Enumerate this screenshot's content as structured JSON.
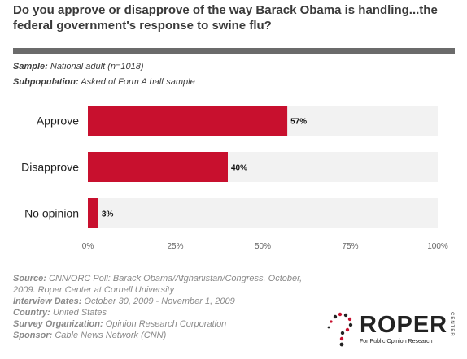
{
  "title": "Do you approve or disapprove of the way Barack Obama is handling...the federal government's response to swine flu?",
  "sample_label": "Sample",
  "sample_value": "National adult (n=1018)",
  "subpop_label": "Subpopulation",
  "subpop_value": "Asked of Form A half sample",
  "colors": {
    "bar": "#c8102e",
    "band": "#f2f2f2",
    "rule": "#6b6b6b"
  },
  "chart_data": {
    "type": "bar",
    "orientation": "horizontal",
    "categories": [
      "Approve",
      "Disapprove",
      "No opinion"
    ],
    "values": [
      57,
      40,
      3
    ],
    "value_labels": [
      "57%",
      "40%",
      "3%"
    ],
    "xlim": [
      0,
      100
    ],
    "xticks": [
      "0%",
      "25%",
      "50%",
      "75%",
      "100%"
    ],
    "grid": false
  },
  "footer": {
    "source_label": "Source",
    "source_value": "CNN/ORC Poll: Barack Obama/Afghanistan/Congress. October, 2009. Roper Center at Cornell University",
    "dates_label": "Interview Dates",
    "dates_value": "October 30, 2009 - November 1, 2009",
    "country_label": "Country",
    "country_value": "United States",
    "org_label": "Survey Organization",
    "org_value": "Opinion Research Corporation",
    "sponsor_label": "Sponsor",
    "sponsor_value": "Cable News Network (CNN)"
  },
  "logo": {
    "word": "ROPER",
    "sub": "For Public Opinion Research",
    "center": "CENTER",
    "icon": "question-mark-dots-icon"
  }
}
